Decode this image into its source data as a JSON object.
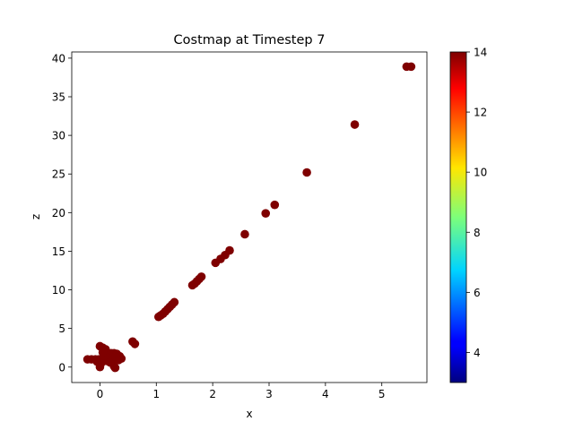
{
  "chart_data": {
    "type": "scatter",
    "title": "Costmap at Timestep 7",
    "xlabel": "x",
    "ylabel": "z",
    "xlim": [
      -0.5,
      5.8
    ],
    "ylim": [
      -2,
      40.8
    ],
    "xticks": [
      0,
      1,
      2,
      3,
      4,
      5
    ],
    "yticks": [
      0,
      5,
      10,
      15,
      20,
      25,
      30,
      35,
      40
    ],
    "grid": false,
    "marker_color": "#7f0000",
    "colorbar": {
      "colormap": "jet",
      "range": [
        3,
        14
      ],
      "ticks": [
        4,
        6,
        8,
        10,
        12,
        14
      ]
    },
    "points": [
      {
        "x": 5.44,
        "y": 38.9
      },
      {
        "x": 5.52,
        "y": 38.9
      },
      {
        "x": 4.52,
        "y": 31.4
      },
      {
        "x": 3.67,
        "y": 25.2
      },
      {
        "x": 3.1,
        "y": 21.0
      },
      {
        "x": 2.94,
        "y": 19.9
      },
      {
        "x": 2.57,
        "y": 17.2
      },
      {
        "x": 2.3,
        "y": 15.1
      },
      {
        "x": 2.22,
        "y": 14.5
      },
      {
        "x": 2.14,
        "y": 14.0
      },
      {
        "x": 2.05,
        "y": 13.5
      },
      {
        "x": 1.8,
        "y": 11.7
      },
      {
        "x": 1.76,
        "y": 11.4
      },
      {
        "x": 1.72,
        "y": 11.1
      },
      {
        "x": 1.68,
        "y": 10.8
      },
      {
        "x": 1.64,
        "y": 10.6
      },
      {
        "x": 1.32,
        "y": 8.4
      },
      {
        "x": 1.28,
        "y": 8.1
      },
      {
        "x": 1.24,
        "y": 7.8
      },
      {
        "x": 1.2,
        "y": 7.5
      },
      {
        "x": 1.16,
        "y": 7.2
      },
      {
        "x": 1.12,
        "y": 6.9
      },
      {
        "x": 1.08,
        "y": 6.7
      },
      {
        "x": 1.04,
        "y": 6.5
      },
      {
        "x": 0.62,
        "y": 3.0
      },
      {
        "x": 0.58,
        "y": 3.3
      },
      {
        "x": 0.0,
        "y": 2.7
      },
      {
        "x": 0.05,
        "y": 2.5
      },
      {
        "x": 0.1,
        "y": 2.3
      },
      {
        "x": -0.22,
        "y": 1.0
      },
      {
        "x": -0.15,
        "y": 1.0
      },
      {
        "x": -0.08,
        "y": 1.0
      },
      {
        "x": -0.02,
        "y": 1.0
      },
      {
        "x": 0.04,
        "y": 1.0
      },
      {
        "x": 0.1,
        "y": 1.2
      },
      {
        "x": 0.15,
        "y": 1.5
      },
      {
        "x": 0.2,
        "y": 1.8
      },
      {
        "x": 0.25,
        "y": 1.8
      },
      {
        "x": 0.3,
        "y": 1.7
      },
      {
        "x": 0.35,
        "y": 1.4
      },
      {
        "x": 0.38,
        "y": 1.1
      },
      {
        "x": 0.3,
        "y": 1.0
      },
      {
        "x": 0.22,
        "y": 1.1
      },
      {
        "x": 0.12,
        "y": 0.8
      },
      {
        "x": 0.02,
        "y": 0.5
      },
      {
        "x": 0.0,
        "y": 0.0
      },
      {
        "x": 0.25,
        "y": 0.1
      },
      {
        "x": 0.27,
        "y": -0.1
      },
      {
        "x": 0.18,
        "y": 0.6
      },
      {
        "x": -0.05,
        "y": 0.7
      },
      {
        "x": 0.08,
        "y": 1.5
      },
      {
        "x": 0.28,
        "y": 1.3
      },
      {
        "x": 0.33,
        "y": 0.9
      },
      {
        "x": 0.05,
        "y": 1.9
      }
    ]
  }
}
